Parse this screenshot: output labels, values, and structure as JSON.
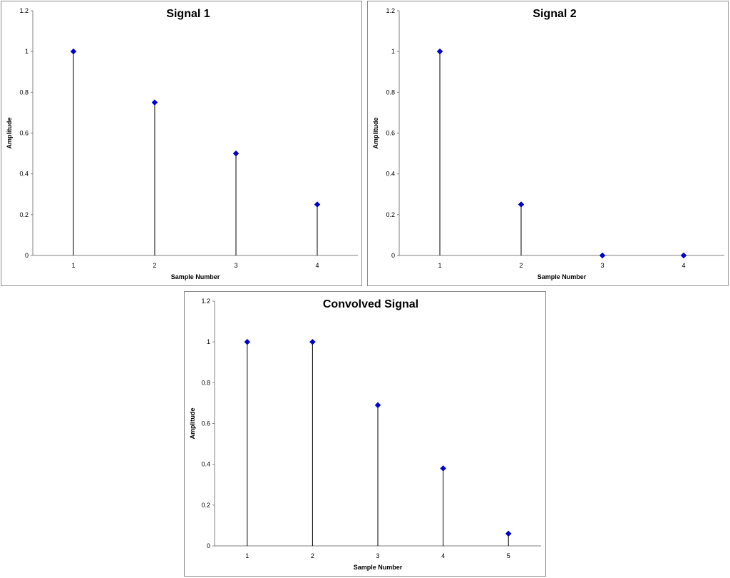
{
  "colors": {
    "marker": "#0000cc",
    "stem": "#000000",
    "axis": "#808080",
    "border": "#8c8c8c"
  },
  "chart_data": [
    {
      "type": "stem",
      "title": "Signal 1",
      "xlabel": "Sample Number",
      "ylabel": "Amplitude",
      "categories": [
        "1",
        "2",
        "3",
        "4"
      ],
      "values": [
        1,
        0.75,
        0.5,
        0.25
      ],
      "ylim": [
        0,
        1.2
      ],
      "yticks": [
        "0",
        "0.2",
        "0.4",
        "0.6",
        "0.8",
        "1",
        "1.2"
      ],
      "grid": false
    },
    {
      "type": "stem",
      "title": "Signal 2",
      "xlabel": "Sample Number",
      "ylabel": "Amplitude",
      "categories": [
        "1",
        "2",
        "3",
        "4"
      ],
      "values": [
        1,
        0.25,
        0,
        0
      ],
      "ylim": [
        0,
        1.2
      ],
      "yticks": [
        "0",
        "0.2",
        "0.4",
        "0.6",
        "0.8",
        "1",
        "1.2"
      ],
      "grid": false
    },
    {
      "type": "stem",
      "title": "Convolved Signal",
      "xlabel": "Sample Number",
      "ylabel": "Amplitude",
      "categories": [
        "1",
        "2",
        "3",
        "4",
        "5"
      ],
      "values": [
        1,
        1,
        0.69,
        0.38,
        0.06
      ],
      "ylim": [
        0,
        1.2
      ],
      "yticks": [
        "0",
        "0.2",
        "0.4",
        "0.6",
        "0.8",
        "1",
        "1.2"
      ],
      "grid": false
    }
  ]
}
